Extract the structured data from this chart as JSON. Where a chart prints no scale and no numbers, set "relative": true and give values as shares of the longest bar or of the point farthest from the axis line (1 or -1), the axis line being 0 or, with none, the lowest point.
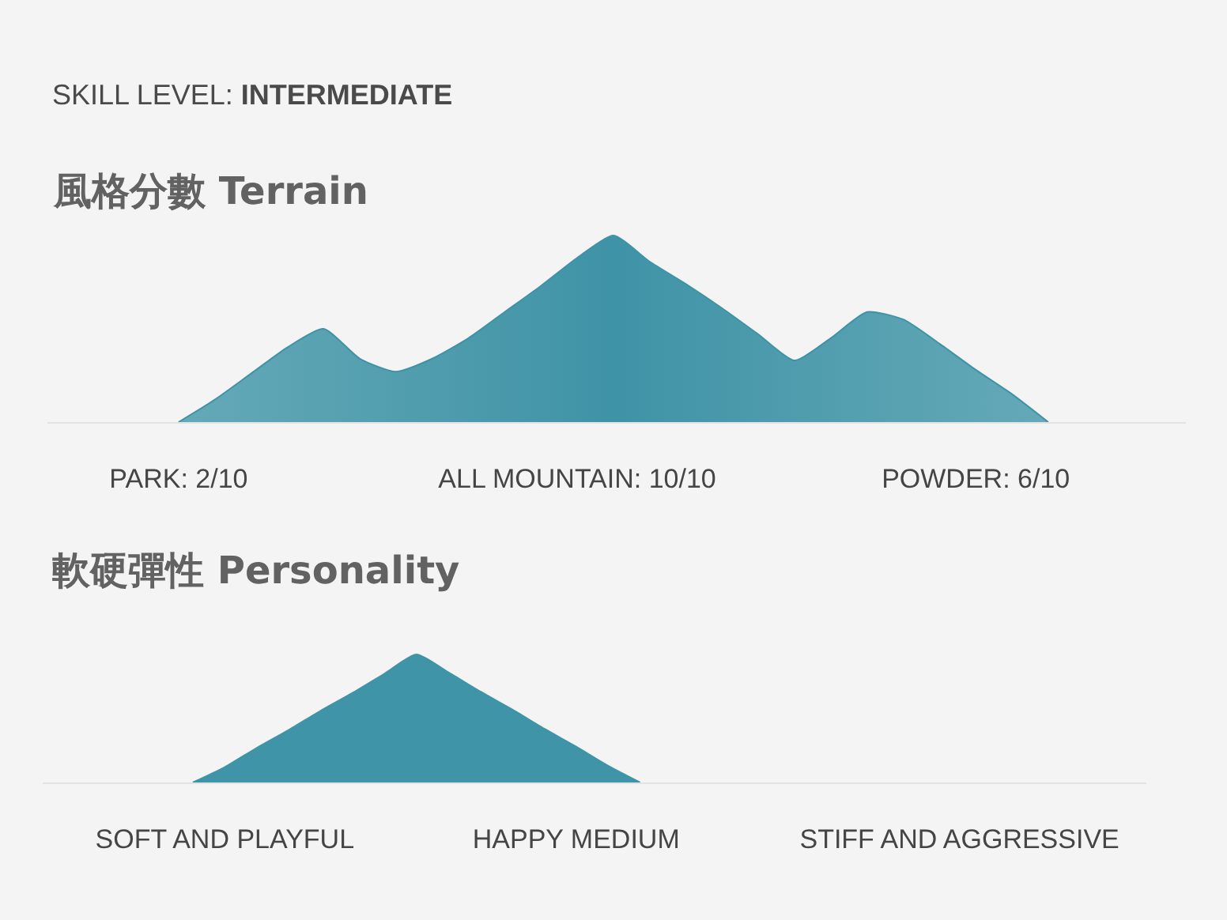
{
  "chart_data": [
    {
      "type": "area",
      "title": "風格分數 Terrain",
      "annotations": [
        "SKILL LEVEL: INTERMEDIATE"
      ],
      "relative": true,
      "categories": [
        "PARK: 2/10",
        null,
        null,
        null,
        null,
        null,
        null,
        null,
        null,
        null,
        null,
        "ALL MOUNTAIN: 10/10",
        null,
        null,
        null,
        null,
        null,
        null,
        null,
        null,
        null,
        null,
        "POWDER: 6/10",
        null,
        null
      ],
      "values": [
        0,
        0.12,
        0.26,
        0.4,
        0.5,
        0.34,
        0.27,
        0.34,
        0.45,
        0.59,
        0.73,
        0.88,
        1.0,
        0.86,
        0.74,
        0.61,
        0.47,
        0.33,
        0.45,
        0.59,
        0.55,
        0.42,
        0.28,
        0.15,
        0
      ],
      "color": "#3f93a6"
    },
    {
      "type": "area",
      "title": "軟硬彈性 Personality",
      "relative": true,
      "categories": [
        null,
        "SOFT AND PLAYFUL",
        null,
        null,
        null,
        null,
        null,
        null,
        null,
        null,
        null,
        null,
        "HAPPY MEDIUM",
        null,
        null,
        null,
        null,
        null,
        null,
        null,
        null,
        null,
        null,
        null,
        "STIFF AND AGGRESSIVE"
      ],
      "values": [
        0,
        0.12,
        0.27,
        0.41,
        0.56,
        0.7,
        0.85,
        1.0,
        0.86,
        0.71,
        0.57,
        0.42,
        0.28,
        0.13,
        0,
        null,
        null,
        null,
        null,
        null,
        null,
        null,
        null,
        null,
        null
      ],
      "color": "#3f94a7"
    }
  ]
}
